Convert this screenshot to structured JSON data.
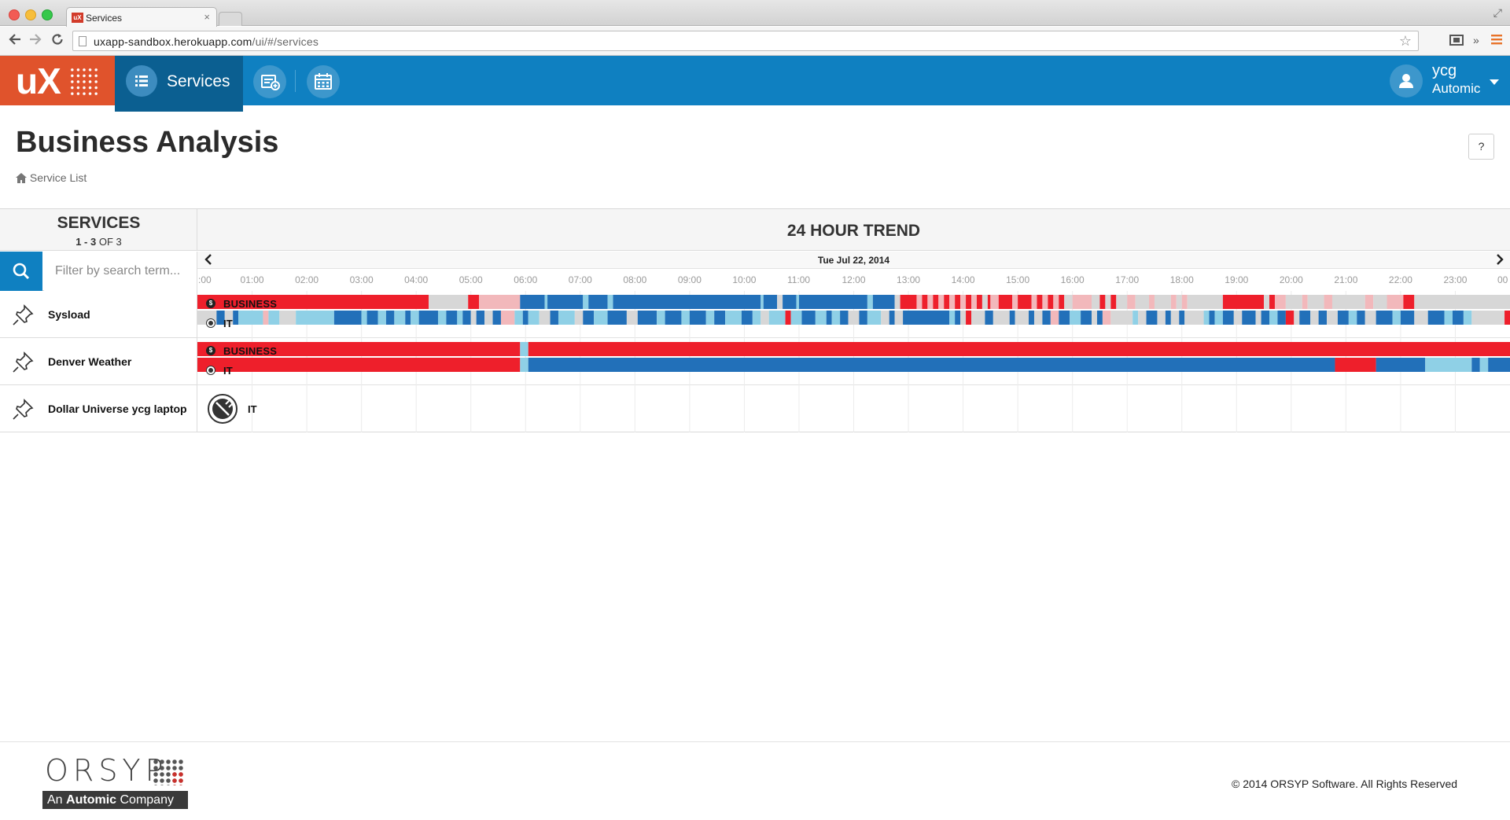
{
  "browser": {
    "tab_title": "Services",
    "tab_favicon_text": "uX",
    "url_host": "uxapp-sandbox.herokuapp.com",
    "url_path": "/ui/#/services"
  },
  "app": {
    "logo_text": "uX",
    "nav_services_label": "Services",
    "user_name": "ycg",
    "user_org": "Automic",
    "colors": {
      "header": "#0f80c1",
      "logo": "#e0532c",
      "active_nav": "#0b5f91"
    }
  },
  "page": {
    "title": "Business Analysis",
    "breadcrumb": "Service List",
    "help_label": "?"
  },
  "services_panel": {
    "title": "SERVICES",
    "count_range": "1 - 3",
    "count_of": "OF 3",
    "search_placeholder": "Filter by search term..."
  },
  "trend": {
    "title": "24 HOUR TREND",
    "date": "Tue Jul 22, 2014",
    "hours": [
      ":00",
      "01:00",
      "02:00",
      "03:00",
      "04:00",
      "05:00",
      "06:00",
      "07:00",
      "08:00",
      "09:00",
      "10:00",
      "11:00",
      "12:00",
      "13:00",
      "14:00",
      "15:00",
      "16:00",
      "17:00",
      "18:00",
      "19:00",
      "20:00",
      "21:00",
      "22:00",
      "23:00",
      "00"
    ]
  },
  "services": [
    {
      "name": "Sysload",
      "bars": [
        "BUSINESS",
        "IT"
      ]
    },
    {
      "name": "Denver Weather",
      "bars": [
        "BUSINESS",
        "IT"
      ]
    },
    {
      "name": "Dollar Universe ycg laptop",
      "bars": [
        "IT"
      ]
    }
  ],
  "badges": {
    "business": "$"
  },
  "status_colors": {
    "critical": "#ee1f2b",
    "critical_light": "#f2b8bb",
    "ok": "#2270b9",
    "ok_light": "#8fd0e6",
    "unknown": "#d7d7d7"
  },
  "chart_data": {
    "type": "heatmap",
    "x_range_hours": [
      0,
      24
    ],
    "rows": [
      {
        "service": "Sysload",
        "bar": "BUSINESS",
        "segments": [
          [
            0.0,
            4.23,
            "critical"
          ],
          [
            4.23,
            4.95,
            "unknown"
          ],
          [
            4.95,
            5.15,
            "critical"
          ],
          [
            5.15,
            5.9,
            "critical_light"
          ],
          [
            5.9,
            6.35,
            "ok"
          ],
          [
            6.35,
            6.4,
            "ok_light"
          ],
          [
            6.4,
            7.05,
            "ok"
          ],
          [
            7.05,
            7.15,
            "ok_light"
          ],
          [
            7.15,
            7.5,
            "ok"
          ],
          [
            7.5,
            7.6,
            "ok_light"
          ],
          [
            7.6,
            10.3,
            "ok"
          ],
          [
            10.3,
            10.35,
            "ok_light"
          ],
          [
            10.35,
            10.6,
            "ok"
          ],
          [
            10.6,
            10.7,
            "unknown"
          ],
          [
            10.7,
            10.95,
            "ok"
          ],
          [
            10.95,
            11.0,
            "ok_light"
          ],
          [
            11.0,
            12.25,
            "ok"
          ],
          [
            12.25,
            12.35,
            "ok_light"
          ],
          [
            12.35,
            12.75,
            "ok"
          ],
          [
            12.75,
            12.85,
            "unknown"
          ],
          [
            12.85,
            13.15,
            "critical"
          ],
          [
            13.15,
            13.25,
            "critical_light"
          ],
          [
            13.25,
            13.35,
            "critical"
          ],
          [
            13.35,
            13.45,
            "critical_light"
          ],
          [
            13.45,
            13.55,
            "critical"
          ],
          [
            13.55,
            13.65,
            "critical_light"
          ],
          [
            13.65,
            13.75,
            "critical"
          ],
          [
            13.75,
            13.85,
            "critical_light"
          ],
          [
            13.85,
            13.95,
            "critical"
          ],
          [
            13.95,
            14.05,
            "critical_light"
          ],
          [
            14.05,
            14.15,
            "critical"
          ],
          [
            14.15,
            14.25,
            "critical_light"
          ],
          [
            14.25,
            14.35,
            "critical"
          ],
          [
            14.35,
            14.45,
            "unknown"
          ],
          [
            14.45,
            14.5,
            "critical"
          ],
          [
            14.5,
            14.65,
            "critical_light"
          ],
          [
            14.65,
            14.9,
            "critical"
          ],
          [
            14.9,
            15.0,
            "critical_light"
          ],
          [
            15.0,
            15.25,
            "critical"
          ],
          [
            15.25,
            15.35,
            "critical_light"
          ],
          [
            15.35,
            15.45,
            "critical"
          ],
          [
            15.45,
            15.55,
            "critical_light"
          ],
          [
            15.55,
            15.65,
            "critical"
          ],
          [
            15.65,
            15.75,
            "critical_light"
          ],
          [
            15.75,
            15.85,
            "critical"
          ],
          [
            15.85,
            16.0,
            "unknown"
          ],
          [
            16.0,
            16.35,
            "critical_light"
          ],
          [
            16.35,
            16.5,
            "unknown"
          ],
          [
            16.5,
            16.6,
            "critical"
          ],
          [
            16.6,
            16.7,
            "unknown"
          ],
          [
            16.7,
            16.8,
            "critical"
          ],
          [
            16.8,
            17.0,
            "unknown"
          ],
          [
            17.0,
            17.15,
            "critical_light"
          ],
          [
            17.15,
            17.4,
            "unknown"
          ],
          [
            17.4,
            17.5,
            "critical_light"
          ],
          [
            17.5,
            17.8,
            "unknown"
          ],
          [
            17.8,
            17.9,
            "critical_light"
          ],
          [
            17.9,
            18.0,
            "unknown"
          ],
          [
            18.0,
            18.1,
            "critical_light"
          ],
          [
            18.1,
            18.75,
            "unknown"
          ],
          [
            18.75,
            19.5,
            "critical"
          ],
          [
            19.5,
            19.6,
            "unknown"
          ],
          [
            19.6,
            19.7,
            "critical"
          ],
          [
            19.7,
            19.9,
            "critical_light"
          ],
          [
            19.9,
            20.2,
            "unknown"
          ],
          [
            20.2,
            20.3,
            "critical_light"
          ],
          [
            20.3,
            20.6,
            "unknown"
          ],
          [
            20.6,
            20.75,
            "critical_light"
          ],
          [
            20.75,
            21.35,
            "unknown"
          ],
          [
            21.35,
            21.5,
            "critical_light"
          ],
          [
            21.5,
            21.75,
            "unknown"
          ],
          [
            21.75,
            22.05,
            "critical_light"
          ],
          [
            22.05,
            22.25,
            "critical"
          ],
          [
            22.25,
            24.0,
            "unknown"
          ]
        ]
      },
      {
        "service": "Sysload",
        "bar": "IT",
        "segments": [
          [
            0.0,
            0.35,
            "unknown"
          ],
          [
            0.35,
            0.5,
            "ok"
          ],
          [
            0.5,
            0.65,
            "unknown"
          ],
          [
            0.65,
            0.75,
            "ok"
          ],
          [
            0.75,
            1.2,
            "ok_light"
          ],
          [
            1.2,
            1.3,
            "critical_light"
          ],
          [
            1.3,
            1.5,
            "ok_light"
          ],
          [
            1.5,
            1.8,
            "unknown"
          ],
          [
            1.8,
            2.5,
            "ok_light"
          ],
          [
            2.5,
            3.0,
            "ok"
          ],
          [
            3.0,
            3.1,
            "ok_light"
          ],
          [
            3.1,
            3.3,
            "ok"
          ],
          [
            3.3,
            3.45,
            "ok_light"
          ],
          [
            3.45,
            3.6,
            "ok"
          ],
          [
            3.6,
            3.8,
            "ok_light"
          ],
          [
            3.8,
            3.9,
            "ok"
          ],
          [
            3.9,
            4.05,
            "ok_light"
          ],
          [
            4.05,
            4.4,
            "ok"
          ],
          [
            4.4,
            4.55,
            "ok_light"
          ],
          [
            4.55,
            4.75,
            "ok"
          ],
          [
            4.75,
            4.85,
            "ok_light"
          ],
          [
            4.85,
            5.0,
            "ok"
          ],
          [
            5.0,
            5.1,
            "unknown"
          ],
          [
            5.1,
            5.25,
            "ok"
          ],
          [
            5.25,
            5.4,
            "unknown"
          ],
          [
            5.4,
            5.55,
            "ok"
          ],
          [
            5.55,
            5.8,
            "critical_light"
          ],
          [
            5.8,
            5.95,
            "ok_light"
          ],
          [
            5.95,
            6.05,
            "ok"
          ],
          [
            6.05,
            6.25,
            "ok_light"
          ],
          [
            6.25,
            6.45,
            "unknown"
          ],
          [
            6.45,
            6.6,
            "ok"
          ],
          [
            6.6,
            6.9,
            "ok_light"
          ],
          [
            6.9,
            7.05,
            "unknown"
          ],
          [
            7.05,
            7.25,
            "ok"
          ],
          [
            7.25,
            7.5,
            "ok_light"
          ],
          [
            7.5,
            7.85,
            "ok"
          ],
          [
            7.85,
            8.05,
            "unknown"
          ],
          [
            8.05,
            8.4,
            "ok"
          ],
          [
            8.4,
            8.55,
            "ok_light"
          ],
          [
            8.55,
            8.85,
            "ok"
          ],
          [
            8.85,
            9.0,
            "ok_light"
          ],
          [
            9.0,
            9.3,
            "ok"
          ],
          [
            9.3,
            9.45,
            "ok_light"
          ],
          [
            9.45,
            9.65,
            "ok"
          ],
          [
            9.65,
            9.95,
            "ok_light"
          ],
          [
            9.95,
            10.15,
            "ok"
          ],
          [
            10.15,
            10.3,
            "ok_light"
          ],
          [
            10.3,
            10.45,
            "unknown"
          ],
          [
            10.45,
            10.75,
            "ok_light"
          ],
          [
            10.75,
            10.85,
            "critical"
          ],
          [
            10.85,
            11.05,
            "ok_light"
          ],
          [
            11.05,
            11.3,
            "ok"
          ],
          [
            11.3,
            11.5,
            "ok_light"
          ],
          [
            11.5,
            11.6,
            "ok"
          ],
          [
            11.6,
            11.75,
            "ok_light"
          ],
          [
            11.75,
            11.9,
            "ok"
          ],
          [
            11.9,
            12.1,
            "unknown"
          ],
          [
            12.1,
            12.25,
            "ok"
          ],
          [
            12.25,
            12.5,
            "ok_light"
          ],
          [
            12.5,
            12.65,
            "unknown"
          ],
          [
            12.65,
            12.75,
            "ok"
          ],
          [
            12.75,
            12.9,
            "unknown"
          ],
          [
            12.9,
            13.75,
            "ok"
          ],
          [
            13.75,
            13.85,
            "ok_light"
          ],
          [
            13.85,
            13.95,
            "ok"
          ],
          [
            13.95,
            14.05,
            "unknown"
          ],
          [
            14.05,
            14.15,
            "critical"
          ],
          [
            14.15,
            14.4,
            "unknown"
          ],
          [
            14.4,
            14.55,
            "ok"
          ],
          [
            14.55,
            14.85,
            "unknown"
          ],
          [
            14.85,
            14.95,
            "ok"
          ],
          [
            14.95,
            15.2,
            "unknown"
          ],
          [
            15.2,
            15.3,
            "ok"
          ],
          [
            15.3,
            15.45,
            "unknown"
          ],
          [
            15.45,
            15.6,
            "ok"
          ],
          [
            15.6,
            15.75,
            "critical_light"
          ],
          [
            15.75,
            15.95,
            "ok"
          ],
          [
            15.95,
            16.15,
            "ok_light"
          ],
          [
            16.15,
            16.35,
            "ok"
          ],
          [
            16.35,
            16.45,
            "unknown"
          ],
          [
            16.45,
            16.55,
            "ok"
          ],
          [
            16.55,
            16.7,
            "critical_light"
          ],
          [
            16.7,
            17.1,
            "unknown"
          ],
          [
            17.1,
            17.2,
            "ok_light"
          ],
          [
            17.2,
            17.35,
            "unknown"
          ],
          [
            17.35,
            17.55,
            "ok"
          ],
          [
            17.55,
            17.7,
            "unknown"
          ],
          [
            17.7,
            17.8,
            "ok"
          ],
          [
            17.8,
            17.95,
            "unknown"
          ],
          [
            17.95,
            18.05,
            "ok"
          ],
          [
            18.05,
            18.4,
            "unknown"
          ],
          [
            18.4,
            18.5,
            "ok_light"
          ],
          [
            18.5,
            18.6,
            "ok"
          ],
          [
            18.6,
            18.75,
            "ok_light"
          ],
          [
            18.75,
            18.95,
            "ok"
          ],
          [
            18.95,
            19.1,
            "unknown"
          ],
          [
            19.1,
            19.35,
            "ok"
          ],
          [
            19.35,
            19.45,
            "unknown"
          ],
          [
            19.45,
            19.6,
            "ok"
          ],
          [
            19.6,
            19.75,
            "ok_light"
          ],
          [
            19.75,
            19.9,
            "ok"
          ],
          [
            19.9,
            20.05,
            "critical"
          ],
          [
            20.05,
            20.15,
            "unknown"
          ],
          [
            20.15,
            20.35,
            "ok"
          ],
          [
            20.35,
            20.5,
            "unknown"
          ],
          [
            20.5,
            20.65,
            "ok"
          ],
          [
            20.65,
            20.85,
            "unknown"
          ],
          [
            20.85,
            21.05,
            "ok"
          ],
          [
            21.05,
            21.2,
            "ok_light"
          ],
          [
            21.2,
            21.35,
            "ok"
          ],
          [
            21.35,
            21.55,
            "unknown"
          ],
          [
            21.55,
            21.85,
            "ok"
          ],
          [
            21.85,
            22.0,
            "ok_light"
          ],
          [
            22.0,
            22.25,
            "ok"
          ],
          [
            22.25,
            22.5,
            "unknown"
          ],
          [
            22.5,
            22.8,
            "ok"
          ],
          [
            22.8,
            22.95,
            "ok_light"
          ],
          [
            22.95,
            23.15,
            "ok"
          ],
          [
            23.15,
            23.3,
            "ok_light"
          ],
          [
            23.3,
            23.9,
            "unknown"
          ],
          [
            23.9,
            24.0,
            "critical"
          ]
        ]
      },
      {
        "service": "Denver Weather",
        "bar": "BUSINESS",
        "segments": [
          [
            0.0,
            5.9,
            "critical"
          ],
          [
            5.9,
            6.05,
            "ok_light"
          ],
          [
            6.05,
            24.0,
            "critical"
          ]
        ]
      },
      {
        "service": "Denver Weather",
        "bar": "IT",
        "segments": [
          [
            0.0,
            5.9,
            "critical"
          ],
          [
            5.9,
            6.05,
            "ok_light"
          ],
          [
            6.05,
            20.8,
            "ok"
          ],
          [
            20.8,
            21.55,
            "critical"
          ],
          [
            21.55,
            22.45,
            "ok"
          ],
          [
            22.45,
            23.3,
            "ok_light"
          ],
          [
            23.3,
            23.45,
            "ok"
          ],
          [
            23.45,
            23.6,
            "ok_light"
          ],
          [
            23.6,
            24.0,
            "ok"
          ]
        ]
      }
    ]
  },
  "footer": {
    "brand": "ORSYP",
    "tagline_prefix": "An",
    "tagline_brand": "Automic",
    "tagline_suffix": "Company",
    "copyright": "© 2014 ORSYP Software. All Rights Reserved"
  }
}
